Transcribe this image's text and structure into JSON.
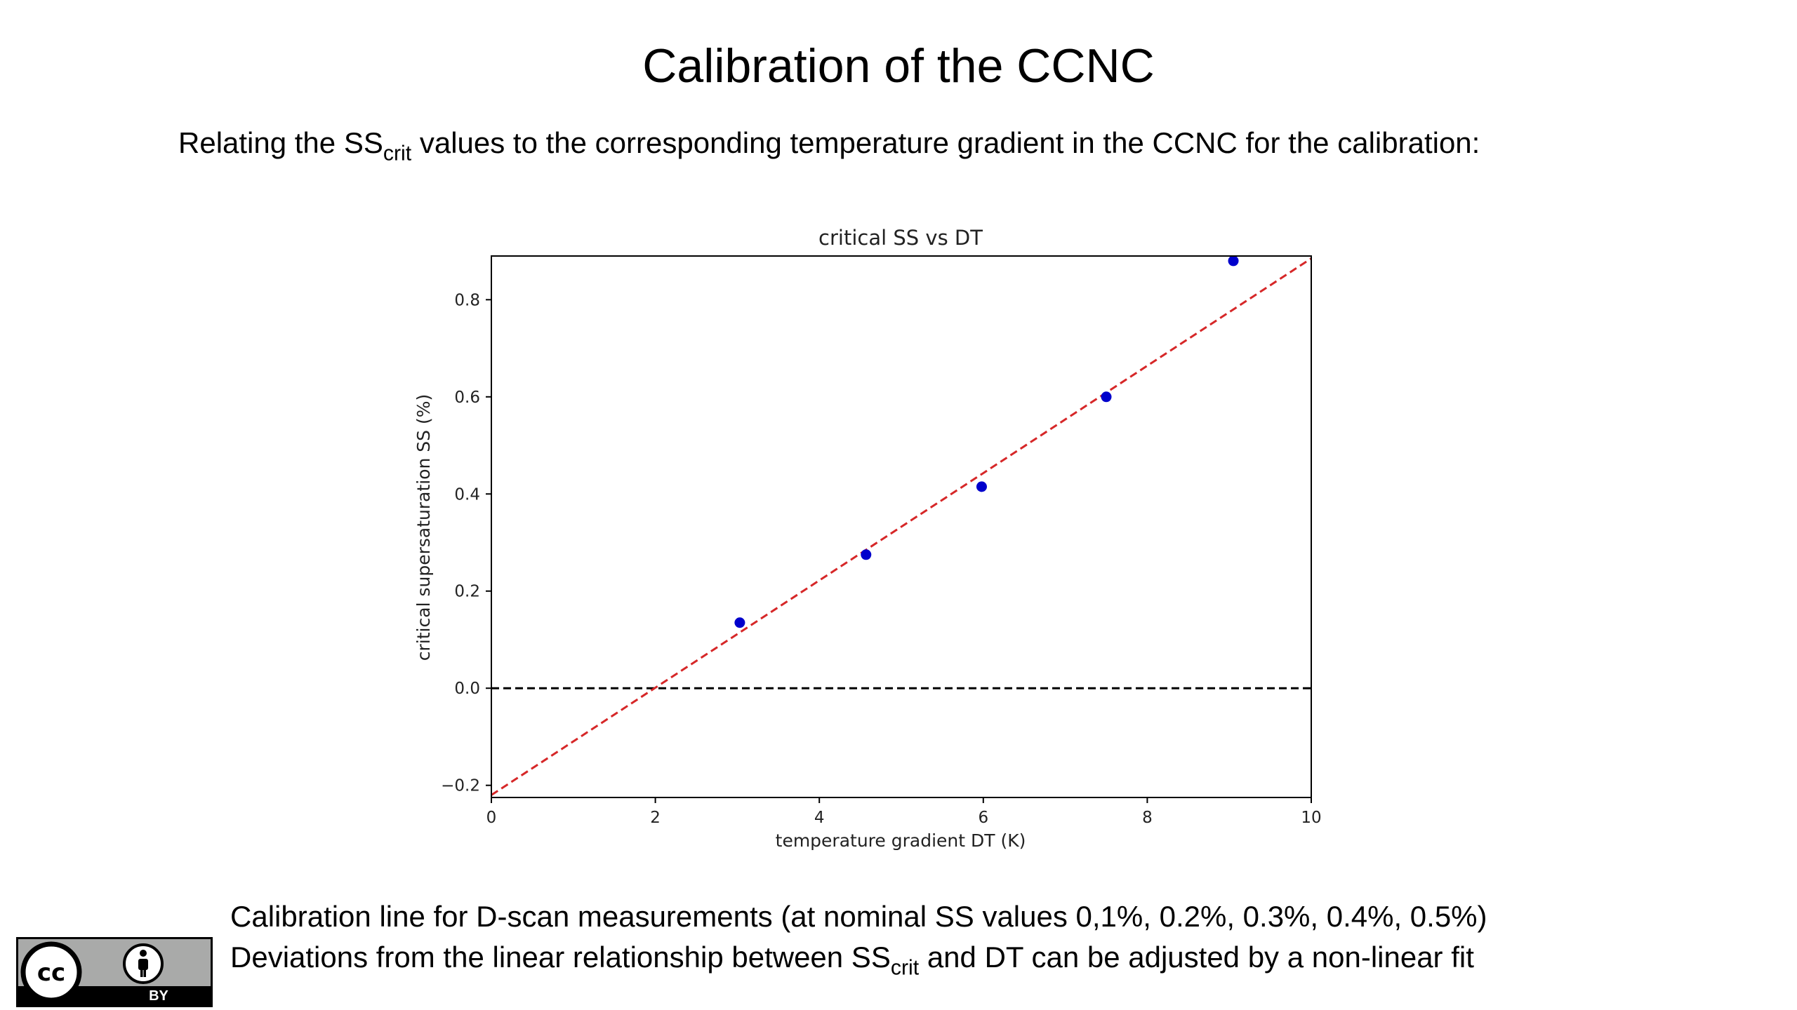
{
  "slide": {
    "title": "Calibration of the CCNC",
    "subtitle": {
      "before": "Relating the SS",
      "sub": "crit",
      "after": " values to the corresponding temperature gradient in the CCNC for the calibration:"
    },
    "caption_line1": "Calibration line for D-scan measurements (at nominal SS values 0,1%, 0.2%, 0.3%, 0.4%, 0.5%)",
    "caption_line2": {
      "before": "Deviations from the linear relationship between SS",
      "sub": "crit",
      "after": " and DT can be adjusted by a non-linear fit"
    },
    "license_badge": {
      "label": "BY",
      "icons": [
        "cc-icon",
        "person-icon"
      ]
    }
  },
  "chart_data": {
    "type": "scatter",
    "title": "critical SS vs DT",
    "xlabel": "temperature gradient DT (K)",
    "ylabel": "critical supersaturation SS (%)",
    "xlim": [
      0,
      10
    ],
    "ylim": [
      -0.225,
      0.89
    ],
    "xticks": [
      0,
      2,
      4,
      6,
      8,
      10
    ],
    "xtick_labels": [
      "0",
      "2",
      "4",
      "6",
      "8",
      "10"
    ],
    "yticks": [
      -0.2,
      0.0,
      0.2,
      0.4,
      0.6,
      0.8
    ],
    "ytick_labels": [
      "−0.2",
      "0.0",
      "0.2",
      "0.4",
      "0.6",
      "0.8"
    ],
    "grid": false,
    "series": [
      {
        "marker_color": "#0000cc",
        "x": [
          3.03,
          4.57,
          5.98,
          7.5,
          9.05
        ],
        "y": [
          0.135,
          0.275,
          0.415,
          0.6,
          0.88
        ]
      }
    ],
    "fit_line": {
      "style": "dashed",
      "color": "#d62728",
      "x": [
        0,
        10
      ],
      "y": [
        -0.22,
        0.885
      ]
    },
    "reference_line": {
      "style": "dashed",
      "color": "#000000",
      "y": 0.0
    }
  }
}
